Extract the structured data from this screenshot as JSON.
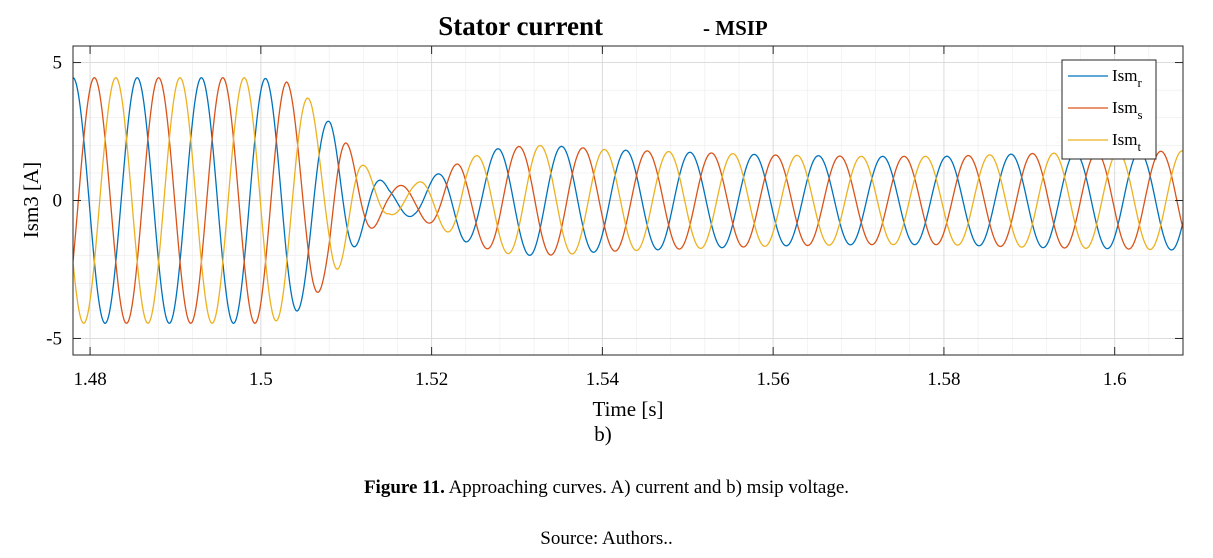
{
  "chart_data": {
    "type": "line",
    "title": "Stator current",
    "title_suffix": "- MSIP",
    "xlabel": "Time [s]",
    "ylabel": "Ism3 [A]",
    "panel_label": "b)",
    "xlim": [
      1.478,
      1.608
    ],
    "ylim": [
      -5.6,
      5.6
    ],
    "x_ticks": [
      1.48,
      1.5,
      1.52,
      1.54,
      1.56,
      1.58,
      1.6
    ],
    "x_tick_labels": [
      "1.48",
      "1.5",
      "1.52",
      "1.54",
      "1.56",
      "1.58",
      "1.6"
    ],
    "y_ticks": [
      -5,
      0,
      5
    ],
    "y_tick_labels": [
      "-5",
      "0",
      "5"
    ],
    "grid": true,
    "legend_position": "top-right",
    "frequency_hz": 133,
    "series": [
      {
        "name": "Ism",
        "subscript": "r",
        "color": "#0072BD",
        "phase_deg": 0
      },
      {
        "name": "Ism",
        "subscript": "s",
        "color": "#D95319",
        "phase_deg": -120
      },
      {
        "name": "Ism",
        "subscript": "t",
        "color": "#EDB120",
        "phase_deg": 120
      }
    ],
    "amplitude_envelope": [
      [
        1.478,
        4.45
      ],
      [
        1.5,
        4.45
      ],
      [
        1.503,
        4.3
      ],
      [
        1.506,
        3.6
      ],
      [
        1.509,
        2.5
      ],
      [
        1.512,
        1.3
      ],
      [
        1.515,
        0.5
      ],
      [
        1.518,
        0.6
      ],
      [
        1.521,
        1.0
      ],
      [
        1.524,
        1.5
      ],
      [
        1.528,
        1.9
      ],
      [
        1.532,
        2.0
      ],
      [
        1.536,
        1.95
      ],
      [
        1.54,
        1.85
      ],
      [
        1.55,
        1.75
      ],
      [
        1.56,
        1.65
      ],
      [
        1.57,
        1.6
      ],
      [
        1.58,
        1.6
      ],
      [
        1.59,
        1.7
      ],
      [
        1.6,
        1.75
      ],
      [
        1.608,
        1.8
      ]
    ],
    "phase_jump_deg": [
      [
        1.508,
        0
      ],
      [
        1.512,
        40
      ],
      [
        1.518,
        100
      ],
      [
        1.524,
        140
      ],
      [
        1.608,
        140
      ]
    ]
  },
  "caption": {
    "figure_label": "Figure 11.",
    "text": " Approaching curves. A) current and b) msip voltage."
  },
  "source": "Source: Authors.."
}
